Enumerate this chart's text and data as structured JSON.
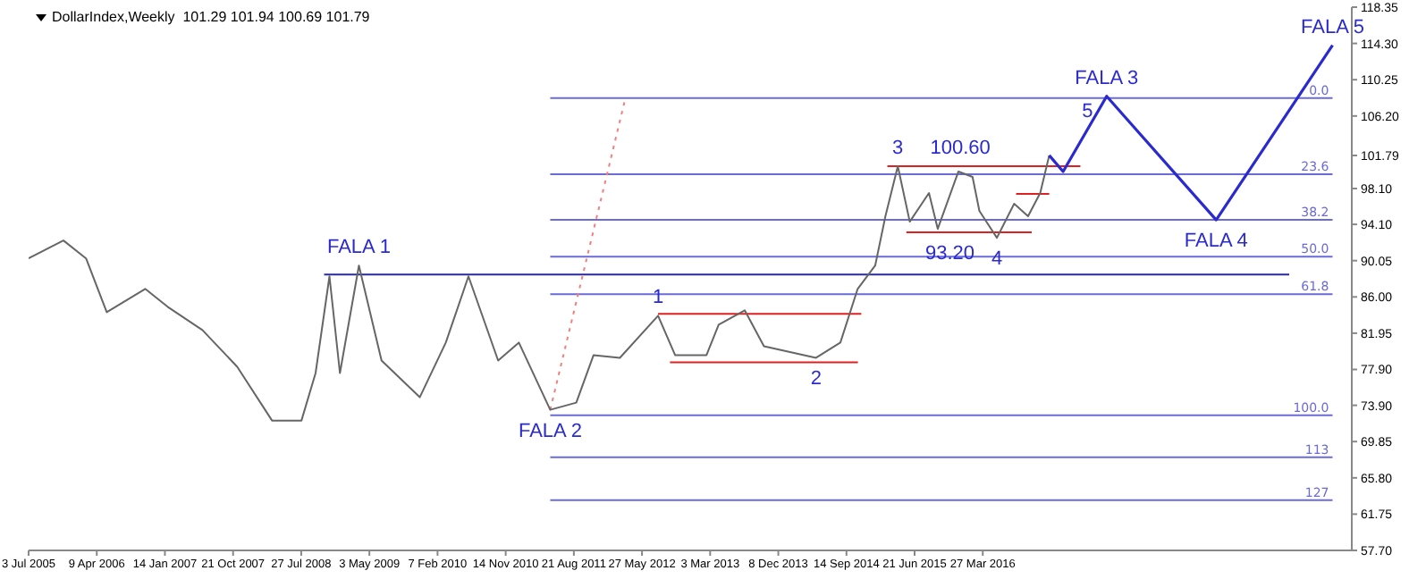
{
  "chart_data": {
    "type": "line",
    "title": "DollarIndex,Weekly  101.29 101.94 100.69 101.79",
    "xlim": [
      "2005-07-03",
      "2020-05-21"
    ],
    "xticks": [
      {
        "value": "2005-07-03",
        "label": "3 Jul 2005"
      },
      {
        "value": "2006-04-09",
        "label": "9 Apr 2006"
      },
      {
        "value": "2007-01-14",
        "label": "14 Jan 2007"
      },
      {
        "value": "2007-10-21",
        "label": "21 Oct 2007"
      },
      {
        "value": "2008-07-27",
        "label": "27 Jul 2008"
      },
      {
        "value": "2009-05-03",
        "label": "3 May 2009"
      },
      {
        "value": "2010-02-07",
        "label": "7 Feb 2010"
      },
      {
        "value": "2010-11-14",
        "label": "14 Nov 2010"
      },
      {
        "value": "2011-08-21",
        "label": "21 Aug 2011"
      },
      {
        "value": "2012-05-27",
        "label": "27 May 2012"
      },
      {
        "value": "2013-03-03",
        "label": "3 Mar 2013"
      },
      {
        "value": "2013-12-08",
        "label": "8 Dec 2013"
      },
      {
        "value": "2014-09-14",
        "label": "14 Sep 2014"
      },
      {
        "value": "2015-06-21",
        "label": "21 Jun 2015"
      },
      {
        "value": "2016-03-27",
        "label": "27 Mar 2016"
      }
    ],
    "ylim": [
      57.7,
      118.35
    ],
    "yticks": [
      {
        "value": 57.7,
        "label": "57.70"
      },
      {
        "value": 61.75,
        "label": "61.75"
      },
      {
        "value": 65.8,
        "label": "65.80"
      },
      {
        "value": 69.85,
        "label": "69.85"
      },
      {
        "value": 73.9,
        "label": "73.90"
      },
      {
        "value": 77.9,
        "label": "77.90"
      },
      {
        "value": 81.95,
        "label": "81.95"
      },
      {
        "value": 86,
        "label": "86.00"
      },
      {
        "value": 90.05,
        "label": "90.05"
      },
      {
        "value": 94.1,
        "label": "94.10"
      },
      {
        "value": 98.1,
        "label": "98.10"
      },
      {
        "value": 101.79,
        "label": "101.79"
      },
      {
        "value": 106.2,
        "label": "106.20"
      },
      {
        "value": 110.25,
        "label": "110.25"
      },
      {
        "value": 114.3,
        "label": "114.30"
      },
      {
        "value": 118.35,
        "label": "118.35"
      }
    ],
    "legend": false,
    "grid": false,
    "marker": "none",
    "series": [
      {
        "name": "0.0",
        "color": "#6b6bd8",
        "x": [
          "2011-05-16",
          "2020-03-03"
        ],
        "values": [
          108.2,
          108.2
        ]
      },
      {
        "name": "23.6",
        "color": "#6b6bd8",
        "x": [
          "2011-05-16",
          "2020-03-03"
        ],
        "values": [
          99.7,
          99.7
        ]
      },
      {
        "name": "38.2",
        "color": "#6b6bd8",
        "x": [
          "2011-05-16",
          "2020-03-03"
        ],
        "values": [
          94.6,
          94.6
        ]
      },
      {
        "name": "50.0",
        "color": "#6b6bd8",
        "x": [
          "2011-05-16",
          "2020-03-03"
        ],
        "values": [
          90.5,
          90.5
        ]
      },
      {
        "name": "61.8",
        "color": "#6b6bd8",
        "x": [
          "2011-05-16",
          "2020-03-03"
        ],
        "values": [
          86.3,
          86.3
        ]
      },
      {
        "name": "100.0",
        "color": "#6b6bd8",
        "x": [
          "2011-05-16",
          "2020-03-03"
        ],
        "values": [
          72.8,
          72.8
        ]
      },
      {
        "name": "113",
        "color": "#6b6bd8",
        "x": [
          "2011-05-16",
          "2020-03-03"
        ],
        "values": [
          68.1,
          68.1
        ]
      },
      {
        "name": "127",
        "color": "#6b6bd8",
        "x": [
          "2011-05-16",
          "2020-03-03"
        ],
        "values": [
          63.3,
          63.3
        ]
      },
      {
        "color": "#2a2aa0",
        "x": [
          "2008-10-29",
          "2019-09-07"
        ],
        "values": [
          88.5,
          88.5
        ]
      },
      {
        "color": "#e02020",
        "x": [
          "2012-08-01",
          "2014-11-14"
        ],
        "values": [
          84.1,
          84.1
        ]
      },
      {
        "color": "#e02020",
        "x": [
          "2012-09-19",
          "2014-10-31"
        ],
        "values": [
          78.7,
          78.7
        ]
      },
      {
        "color": "#e02020",
        "x": [
          "2015-03-01",
          "2017-05-02"
        ],
        "values": [
          100.6,
          100.6
        ]
      },
      {
        "color": "#e02020",
        "x": [
          "2015-05-18",
          "2016-10-14"
        ],
        "values": [
          93.2,
          93.2
        ]
      },
      {
        "color": "#e02020",
        "x": [
          "2016-08-11",
          "2016-12-25"
        ],
        "values": [
          97.5,
          97.5
        ]
      },
      {
        "color": "#f08080",
        "line_style": "dotted",
        "x": [
          "2011-05-16",
          "2012-03-19"
        ],
        "values": [
          73.4,
          108.1
        ]
      },
      {
        "color": "#666666",
        "x": [
          "2005-07-03",
          "2005-11-23",
          "2006-02-24",
          "2006-05-20",
          "2006-10-25",
          "2007-01-25",
          "2007-06-17",
          "2007-11-07",
          "2008-03-29",
          "2008-07-28",
          "2008-09-24",
          "2008-11-20",
          "2009-01-02",
          "2009-03-21",
          "2009-06-22",
          "2009-11-26",
          "2010-03-13",
          "2010-06-14",
          "2010-10-14",
          "2011-01-07",
          "2011-05-16",
          "2011-08-31",
          "2011-11-10",
          "2012-02-26",
          "2012-08-01",
          "2012-10-10",
          "2013-02-16",
          "2013-04-07",
          "2013-07-23",
          "2013-10-10",
          "2014-05-12",
          "2014-08-20",
          "2014-10-30",
          "2015-01-10",
          "2015-02-21",
          "2015-04-13",
          "2015-06-01",
          "2015-08-19",
          "2015-09-24",
          "2015-12-18",
          "2016-02-14",
          "2016-03-13",
          "2016-05-24",
          "2016-08-03",
          "2016-09-29",
          "2016-11-18",
          "2016-12-25"
        ],
        "values": [
          90.3,
          92.3,
          90.3,
          84.3,
          86.9,
          84.9,
          82.3,
          78.2,
          72.2,
          72.2,
          77.5,
          88.3,
          77.5,
          89.5,
          78.9,
          74.8,
          80.9,
          88.3,
          78.9,
          80.9,
          73.4,
          74.2,
          79.5,
          79.2,
          83.9,
          79.5,
          79.5,
          82.9,
          84.5,
          80.5,
          79.2,
          80.9,
          86.9,
          89.5,
          95.0,
          100.6,
          94.4,
          97.6,
          93.6,
          100.0,
          99.4,
          95.6,
          92.6,
          96.4,
          95.0,
          97.6,
          101.8
        ]
      },
      {
        "color": "#2a2ad0",
        "x": [
          "2016-12-25",
          "2017-02-20",
          "2017-08-18",
          "2018-11-11",
          "2020-03-03"
        ],
        "values": [
          101.8,
          100.0,
          108.4,
          94.6,
          114.1
        ]
      }
    ],
    "annotations": [
      {
        "text": "FALA 1",
        "x": "2009-03-21",
        "y": 89.5
      },
      {
        "text": "FALA 2",
        "x": "2011-05-16",
        "y": 73.4
      },
      {
        "text": "FALA 3",
        "x": "2017-08-18",
        "y": 108.4
      },
      {
        "text": "FALA 4",
        "x": "2018-11-11",
        "y": 94.6
      },
      {
        "text": "FALA 5",
        "x": "2020-03-03",
        "y": 114.1
      },
      {
        "text": "1",
        "x": "2012-08-01",
        "y": 83.9
      },
      {
        "text": "2",
        "x": "2014-05-12",
        "y": 79.2
      },
      {
        "text": "3",
        "x": "2015-04-13",
        "y": 100.6
      },
      {
        "text": "4",
        "x": "2016-05-24",
        "y": 92.6
      },
      {
        "text": "5",
        "x": "2017-05-31",
        "y": 104.7
      },
      {
        "text": "100.60",
        "x": "2015-12-26",
        "y": 100.6
      },
      {
        "text": "93.20",
        "x": "2015-11-13",
        "y": 93.2
      }
    ]
  }
}
